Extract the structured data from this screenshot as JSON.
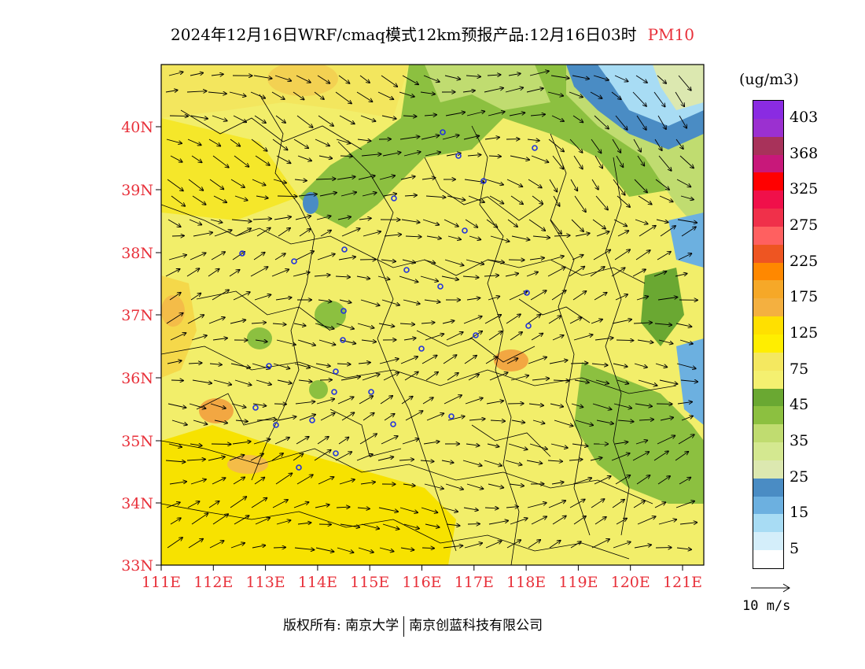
{
  "title": {
    "main": "2024年12月16日WRF/cmaq模式12km预报产品:12月16日03时",
    "variable": "PM10"
  },
  "axes": {
    "lat_labels": [
      "40N",
      "39N",
      "38N",
      "37N",
      "36N",
      "35N",
      "34N",
      "33N"
    ],
    "lon_labels": [
      "111E",
      "112E",
      "113E",
      "114E",
      "115E",
      "116E",
      "117E",
      "118E",
      "119E",
      "120E",
      "121E"
    ],
    "label_color": "#e8303a"
  },
  "colorbar": {
    "unit": "(ug/m3)",
    "labels": [
      "403",
      "368",
      "325",
      "275",
      "225",
      "175",
      "125",
      "75",
      "45",
      "35",
      "25",
      "15",
      "5"
    ],
    "colors": [
      "#8a2be2",
      "#9b30d0",
      "#a8325a",
      "#c8187a",
      "#ff0000",
      "#f0104a",
      "#f0304a",
      "#ff6060",
      "#ee5522",
      "#ff8800",
      "#f6a828",
      "#f4b040",
      "#ffe000",
      "#ffee00",
      "#f4e860",
      "#f4f070",
      "#6aa832",
      "#8cc040",
      "#c0dc70",
      "#d4e890",
      "#dce8b0",
      "#4a8cc4",
      "#6cb0e0",
      "#a8dcf4",
      "#d4eefa",
      "#ffffff"
    ]
  },
  "wind_reference": {
    "label": "10 m/s"
  },
  "footer": {
    "copyright": "版权所有: 南京大学",
    "company": "南京创蓝科技有限公司"
  }
}
